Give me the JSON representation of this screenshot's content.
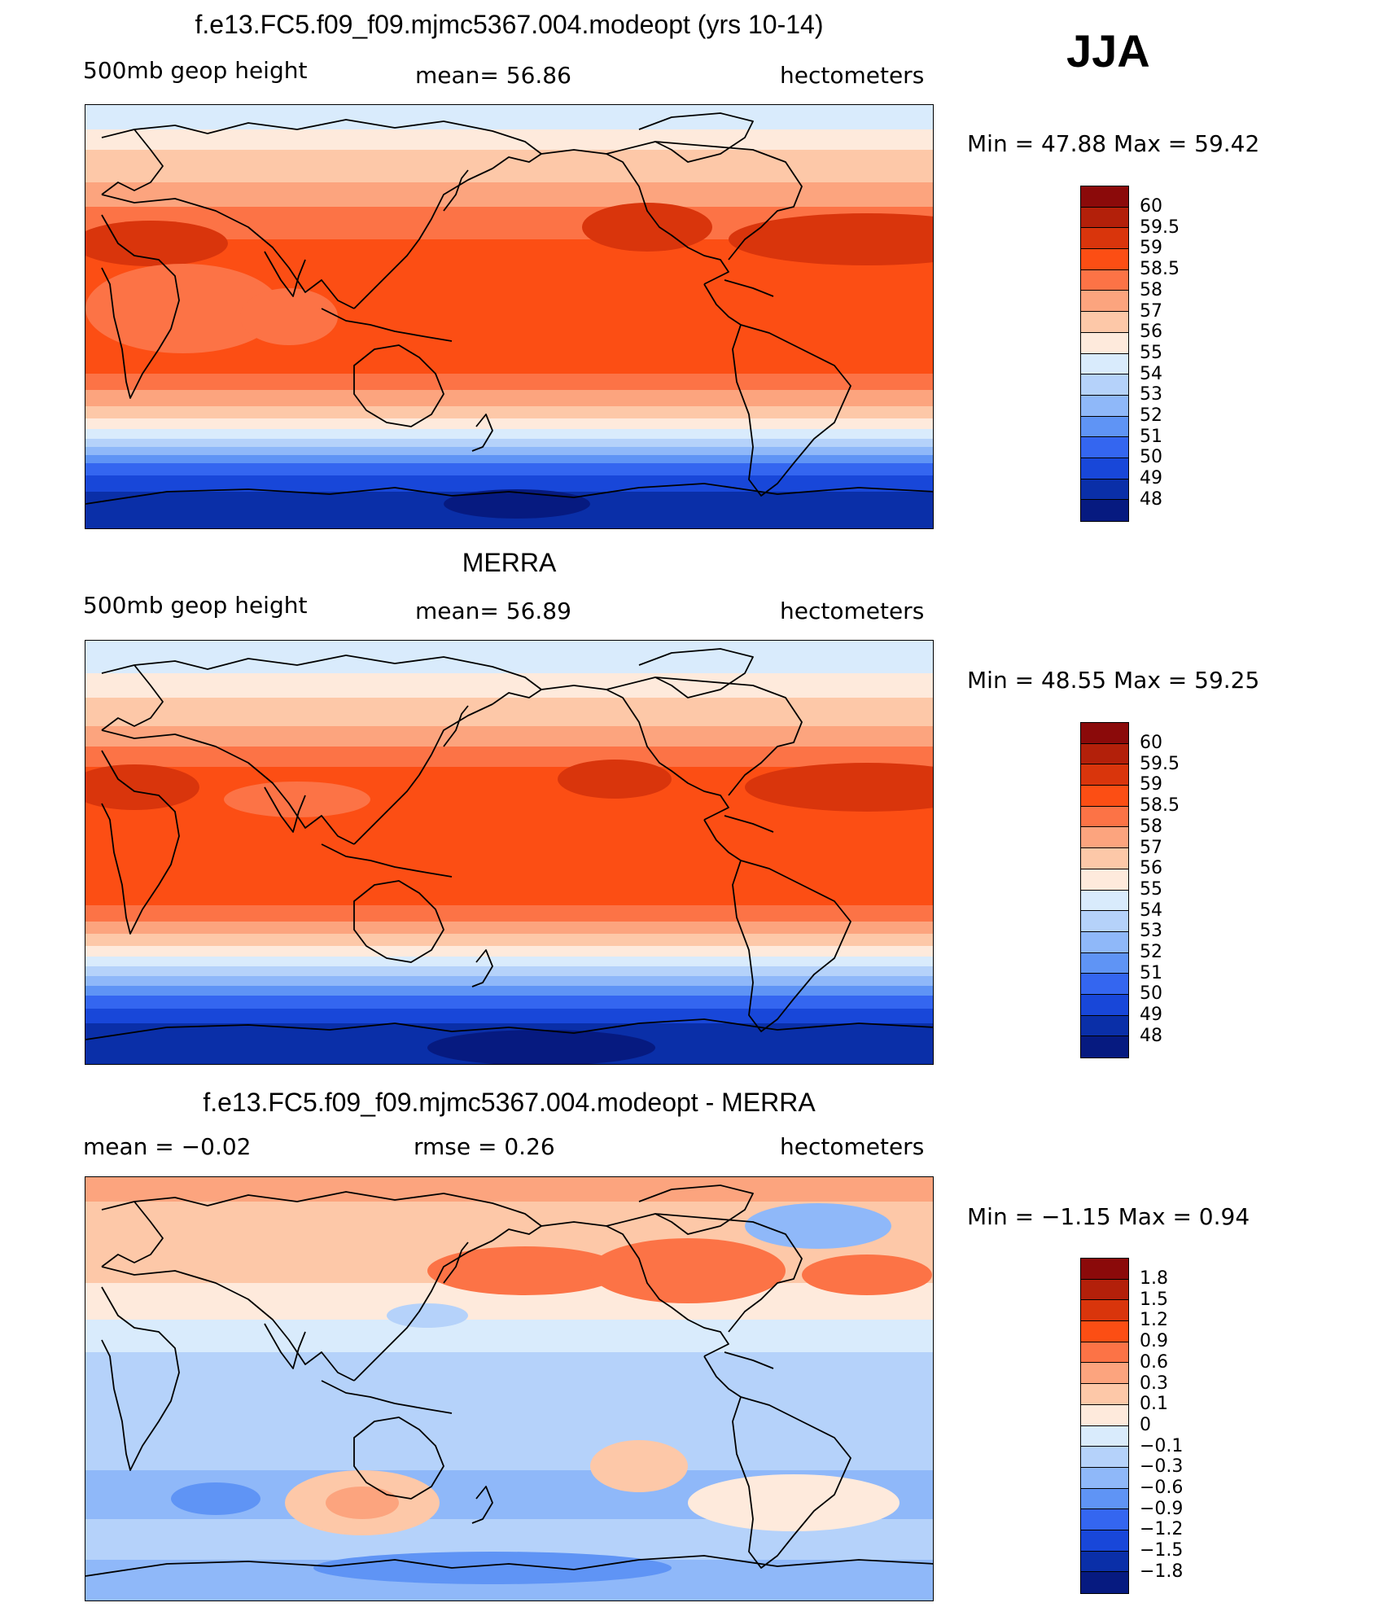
{
  "season": "JJA",
  "panels": [
    {
      "title": "f.e13.FC5.f09_f09.mjmc5367.004.modeopt (yrs 10-14)",
      "left_label": "500mb  geop  height",
      "center_label": "mean=   56.86",
      "right_label": "hectometers",
      "min_max": "Min  =    47.88  Max  =    59.42",
      "scheme": "abs"
    },
    {
      "title": "MERRA",
      "left_label": "500mb  geop  height",
      "center_label": "mean=   56.89",
      "right_label": "hectometers",
      "min_max": "Min  =    48.55  Max  =    59.25",
      "scheme": "abs2"
    },
    {
      "title": "f.e13.FC5.f09_f09.mjmc5367.004.modeopt - MERRA",
      "left_label": "mean  =    −0.02",
      "center_label": "rmse  =     0.26",
      "right_label": "hectometers",
      "min_max": "Min  =   −1.15  Max  =      0.94",
      "scheme": "diff"
    }
  ],
  "colorbars": {
    "abs": {
      "labels": [
        "60",
        "59.5",
        "59",
        "58.5",
        "58",
        "57",
        "56",
        "55",
        "54",
        "53",
        "52",
        "51",
        "50",
        "49",
        "48"
      ],
      "colors": [
        "#8b0a0a",
        "#b3200a",
        "#d9350c",
        "#fc4e14",
        "#fc7346",
        "#fca47e",
        "#fdc8a8",
        "#feeadc",
        "#d9ebfc",
        "#b5d2fa",
        "#8fb8f9",
        "#5f94f5",
        "#3466f0",
        "#1847d9",
        "#0a2fa8",
        "#061a80"
      ]
    },
    "diff": {
      "labels": [
        "1.8",
        "1.5",
        "1.2",
        "0.9",
        "0.6",
        "0.3",
        "0.1",
        "0",
        "−0.1",
        "−0.3",
        "−0.6",
        "−0.9",
        "−1.2",
        "−1.5",
        "−1.8"
      ],
      "colors": [
        "#8b0a0a",
        "#b3200a",
        "#d9350c",
        "#fc4e14",
        "#fc7346",
        "#fca47e",
        "#fdc8a8",
        "#feeadc",
        "#d9ebfc",
        "#b5d2fa",
        "#8fb8f9",
        "#5f94f5",
        "#3466f0",
        "#1847d9",
        "#0a2fa8",
        "#061a80"
      ]
    }
  }
}
